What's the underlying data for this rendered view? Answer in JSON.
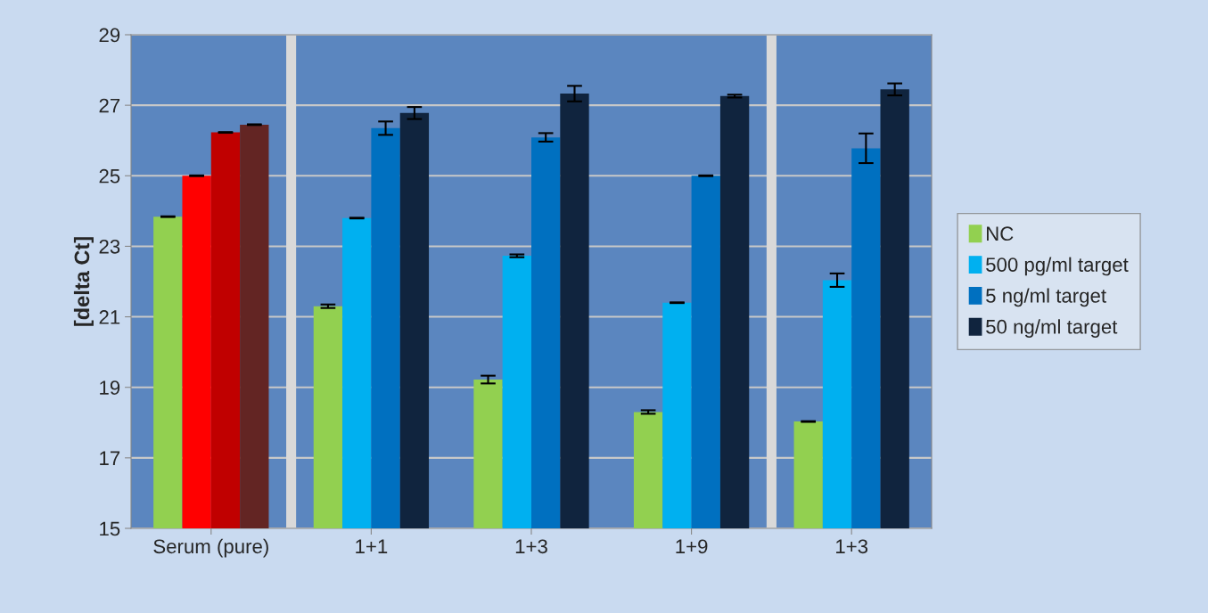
{
  "chart_data": {
    "type": "bar",
    "ylabel": "[delta Ct]",
    "categories": [
      "Serum (pure)",
      "1+1",
      "1+3",
      "1+9",
      "1+3"
    ],
    "series": [
      {
        "name": "NC",
        "color": "#92d050",
        "colors": [
          "#92d050",
          "#92d050",
          "#92d050",
          "#92d050",
          "#92d050"
        ],
        "values": [
          23.84,
          21.3,
          19.22,
          18.3,
          18.03
        ],
        "errors": [
          0.01,
          0.05,
          0.11,
          0.05,
          0.01
        ]
      },
      {
        "name": "500 pg/ml target",
        "color": "#00b0f0",
        "colors": [
          "#ff0000",
          "#00b0f0",
          "#00b0f0",
          "#00b0f0",
          "#00b0f0"
        ],
        "values": [
          25.0,
          23.8,
          22.73,
          21.4,
          22.04
        ],
        "errors": [
          0.01,
          0.01,
          0.04,
          0.01,
          0.19
        ]
      },
      {
        "name": "5 ng/ml target",
        "color": "#0070c0",
        "colors": [
          "#c00000",
          "#0070c0",
          "#0070c0",
          "#0070c0",
          "#0070c0"
        ],
        "values": [
          26.23,
          26.35,
          26.09,
          25.0,
          25.78
        ],
        "errors": [
          0.01,
          0.19,
          0.12,
          0.01,
          0.42
        ]
      },
      {
        "name": "50 ng/ml target",
        "color": "#10243e",
        "colors": [
          "#632523",
          "#10243e",
          "#10243e",
          "#10243e",
          "#10243e"
        ],
        "values": [
          26.45,
          26.78,
          27.33,
          27.26,
          27.45
        ],
        "errors": [
          0.01,
          0.17,
          0.22,
          0.04,
          0.17
        ]
      }
    ],
    "ylim": [
      15,
      29
    ],
    "yticks": [
      15,
      17,
      19,
      21,
      23,
      25,
      27,
      29
    ],
    "grid": "y",
    "legend": "right"
  }
}
